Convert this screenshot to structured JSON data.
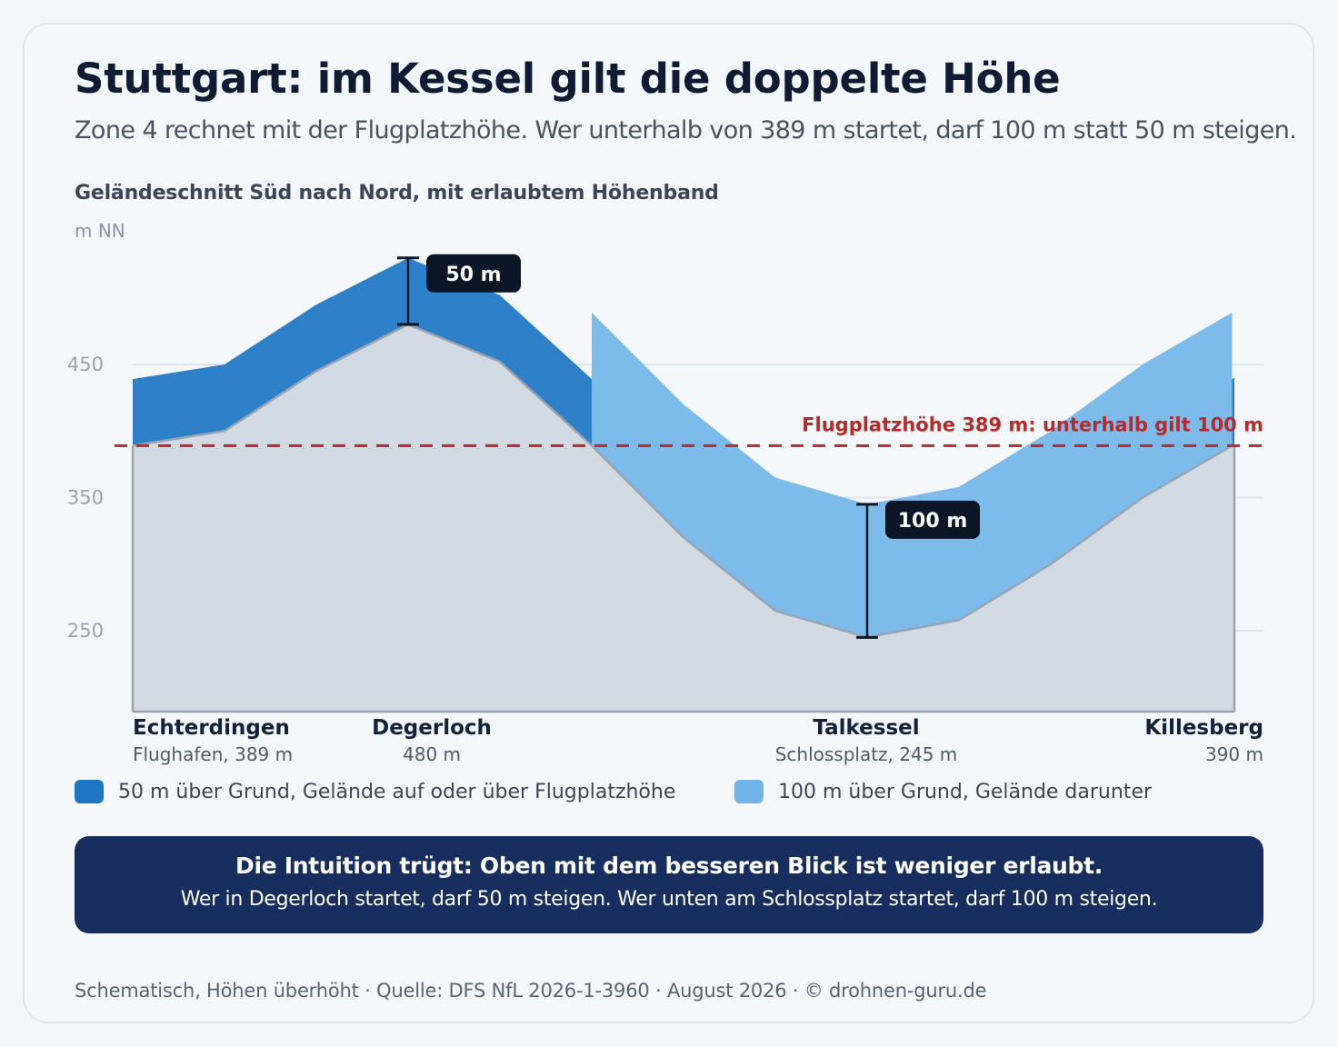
{
  "header": {
    "title": "Stuttgart: im Kessel gilt die doppelte Höhe",
    "subtitle": "Zone 4 rechnet mit der Flugplatzhöhe. Wer unterhalb von 389 m startet, darf 100 m statt 50 m steigen."
  },
  "chart_data": {
    "type": "area",
    "title": "Geländeschnitt Süd nach Nord, mit erlaubtem Höhenband",
    "ylabel": "m NN",
    "ylim": [
      190,
      550
    ],
    "yticks": [
      250,
      350,
      450
    ],
    "grid": true,
    "reference_line": {
      "value": 389,
      "label": "Flugplatzhöhe 389 m: unterhalb gilt 100 m",
      "color": "#b52a2a"
    },
    "x": [
      0,
      1,
      2,
      3,
      4,
      5,
      6,
      7,
      8,
      9,
      10,
      11,
      12
    ],
    "series": [
      {
        "name": "Gelände",
        "values": [
          389,
          400,
          445,
          480,
          452,
          389,
          320,
          265,
          245,
          258,
          300,
          350,
          390
        ]
      }
    ],
    "band_series": [
      {
        "name": "50 m über Grund, Gelände auf oder über Flugplatzhöhe",
        "offset": 50,
        "rule": "terrain >= 389",
        "color": "#2e80c8"
      },
      {
        "name": "100 m über Grund, Gelände darunter",
        "offset": 100,
        "rule": "terrain < 389",
        "color": "#7dbbea"
      }
    ],
    "terrain_color": "#d2dbe4",
    "annotations": [
      {
        "x": 3,
        "from": 480,
        "to": 530,
        "label": "50 m"
      },
      {
        "x": 8,
        "from": 245,
        "to": 345,
        "label": "100 m"
      }
    ],
    "places": [
      {
        "x": 0,
        "name": "Echterdingen",
        "detail": "Flughafen, 389 m"
      },
      {
        "x": 3,
        "name": "Degerloch",
        "detail": "480 m"
      },
      {
        "x": 8,
        "name": "Talkessel",
        "detail": "Schlossplatz, 245 m"
      },
      {
        "x": 12,
        "name": "Killesberg",
        "detail": "390 m"
      }
    ]
  },
  "legend": {
    "items": [
      {
        "label": "50 m über Grund, Gelände auf oder über Flugplatzhöhe",
        "color": "#1f74c4"
      },
      {
        "label": "100 m über Grund, Gelände darunter",
        "color": "#73b4e8"
      }
    ]
  },
  "banner": {
    "headline": "Die Intuition trügt: Oben mit dem besseren Blick ist weniger erlaubt.",
    "text": "Wer in Degerloch startet, darf 50 m steigen. Wer unten am Schlossplatz startet, darf 100 m steigen."
  },
  "footer": {
    "text": "Schematisch, Höhen überhöht · Quelle: DFS NfL 2026-1-3960 · August 2026 · © drohnen-guru.de"
  }
}
